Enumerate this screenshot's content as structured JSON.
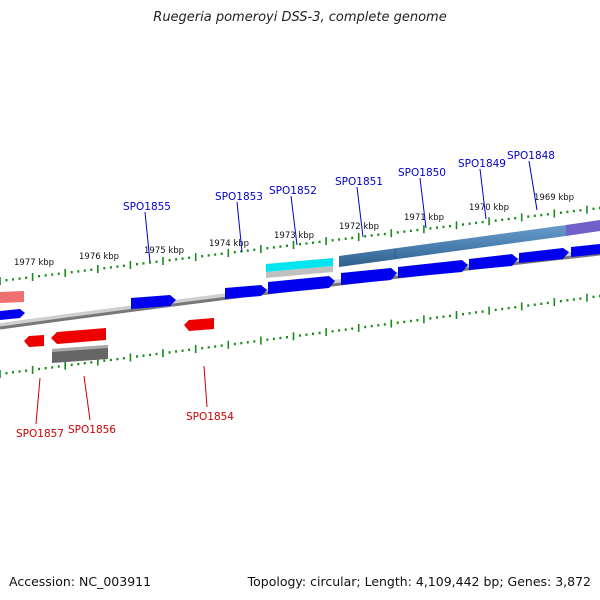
{
  "title": "Ruegeria pomeroyi DSS-3, complete genome",
  "footer": {
    "accession": "Accession: NC_003911",
    "summary": "Topology: circular; Length: 4,109,442 bp; Genes: 3,872"
  },
  "kbp_labels": [
    "1977 kbp",
    "1976 kbp",
    "1975 kbp",
    "1974 kbp",
    "1973 kbp",
    "1972 kbp",
    "1971 kbp",
    "1970 kbp",
    "1969 kbp"
  ],
  "forward_gene_labels": [
    "SPO1855",
    "SPO1853",
    "SPO1852",
    "SPO1851",
    "SPO1850",
    "SPO1849",
    "SPO1848"
  ],
  "reverse_gene_labels": [
    "SPO1857",
    "SPO1856",
    "SPO1854"
  ],
  "colors": {
    "forward_gene": "#0000ee",
    "reverse_gene": "#ee0000",
    "forward_label": "#0000cc",
    "reverse_label": "#cc0000",
    "tick": "#1a8a1a",
    "backbone": "#7a7a7a",
    "cog_blue": "#4a80b0",
    "cog_cyan": "#00e5ee",
    "cog_purple": "#7060c8",
    "cog_gray": "#666666",
    "cog_pink": "#ee7070"
  }
}
